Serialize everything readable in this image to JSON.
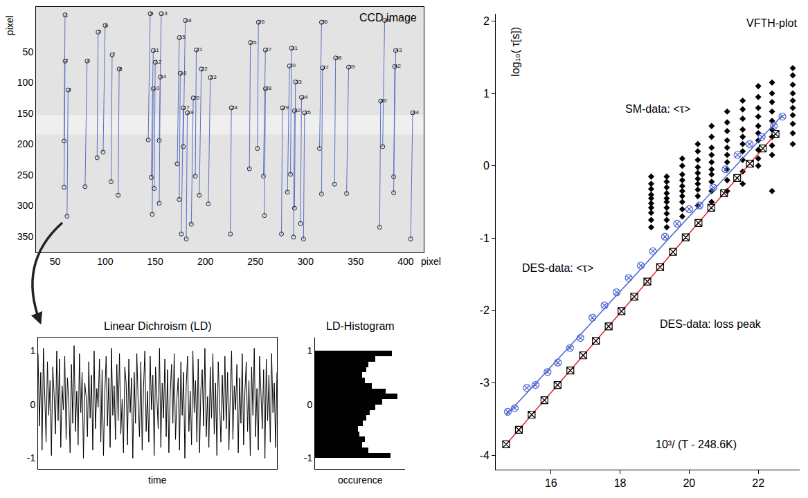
{
  "chart_data": [
    {
      "type": "scatter",
      "title": "CCD image",
      "xlabel": "pixel",
      "ylabel": "pixel",
      "xlim": [
        31,
        418
      ],
      "ylim": [
        376,
        -23
      ],
      "xticks": [
        50,
        100,
        150,
        200,
        250,
        300,
        350,
        400
      ],
      "yticks": [
        50,
        100,
        150,
        200,
        250,
        300,
        350
      ],
      "color": "#5b6fc4",
      "marker": "circle-open",
      "points": [
        {
          "label": "1",
          "x": [
            60,
            59
          ],
          "y": [
            -10,
            195
          ]
        },
        {
          "label": "2",
          "x": [
            60,
            59
          ],
          "y": [
            65,
            270
          ]
        },
        {
          "label": "3",
          "x": [
            63,
            62
          ],
          "y": [
            112,
            317
          ]
        },
        {
          "label": "4",
          "x": [
            82,
            80
          ],
          "y": [
            65,
            269
          ]
        },
        {
          "label": "5",
          "x": [
            93,
            92
          ],
          "y": [
            18,
            222
          ]
        },
        {
          "label": "6",
          "x": [
            100,
            98
          ],
          "y": [
            7,
            213
          ]
        },
        {
          "label": "7",
          "x": [
            107,
            106
          ],
          "y": [
            55,
            261
          ]
        },
        {
          "label": "8",
          "x": [
            114,
            113
          ],
          "y": [
            78,
            283
          ]
        },
        {
          "label": "9",
          "x": [
            145,
            143
          ],
          "y": [
            -12,
            193
          ]
        },
        {
          "label": "10",
          "x": [
            148,
            147
          ],
          "y": [
            110,
            314
          ]
        },
        {
          "label": "11",
          "x": [
            148,
            146
          ],
          "y": [
            48,
            254
          ]
        },
        {
          "label": "12",
          "x": [
            150,
            149
          ],
          "y": [
            67,
            272
          ]
        },
        {
          "label": "13",
          "x": [
            156,
            154
          ],
          "y": [
            -12,
            194
          ]
        },
        {
          "label": "14",
          "x": [
            155,
            154
          ],
          "y": [
            91,
            296
          ]
        },
        {
          "label": "15",
          "x": [
            174,
            172
          ],
          "y": [
            27,
            232
          ]
        },
        {
          "label": "16",
          "x": [
            175,
            174
          ],
          "y": [
            85,
            290
          ]
        },
        {
          "label": "17",
          "x": [
            178,
            176
          ],
          "y": [
            141,
            346
          ]
        },
        {
          "label": "18",
          "x": [
            180,
            178
          ],
          "y": [
            -1,
            204
          ]
        },
        {
          "label": "19",
          "x": [
            182,
            181
          ],
          "y": [
            149,
            354
          ]
        },
        {
          "label": "20",
          "x": [
            188,
            186
          ],
          "y": [
            125,
            330
          ]
        },
        {
          "label": "21",
          "x": [
            191,
            190
          ],
          "y": [
            47,
            252
          ]
        },
        {
          "label": "22",
          "x": [
            196,
            194
          ],
          "y": [
            78,
            283
          ]
        },
        {
          "label": "23",
          "x": [
            205,
            203
          ],
          "y": [
            92,
            297
          ]
        },
        {
          "label": "24",
          "x": [
            226,
            225
          ],
          "y": [
            141,
            346
          ]
        },
        {
          "label": "25",
          "x": [
            245,
            244
          ],
          "y": [
            35,
            240
          ]
        },
        {
          "label": "26",
          "x": [
            253,
            252
          ],
          "y": [
            2,
            207
          ]
        },
        {
          "label": "27",
          "x": [
            260,
            258
          ],
          "y": [
            47,
            252
          ]
        },
        {
          "label": "28",
          "x": [
            260,
            259
          ],
          "y": [
            110,
            316
          ]
        },
        {
          "label": "29",
          "x": [
            277,
            276
          ],
          "y": [
            141,
            346
          ]
        },
        {
          "label": "30",
          "x": [
            284,
            282
          ],
          "y": [
            73,
            278
          ]
        },
        {
          "label": "31",
          "x": [
            286,
            285
          ],
          "y": [
            44,
            249
          ]
        },
        {
          "label": "32",
          "x": [
            289,
            288
          ],
          "y": [
            146,
            351
          ]
        },
        {
          "label": "33",
          "x": [
            290,
            289
          ],
          "y": [
            99,
            304
          ]
        },
        {
          "label": "34",
          "x": [
            296,
            295
          ],
          "y": [
            124,
            329
          ]
        },
        {
          "label": "35",
          "x": [
            299,
            298
          ],
          "y": [
            149,
            354
          ]
        },
        {
          "label": "36",
          "x": [
            316,
            314
          ],
          "y": [
            2,
            207
          ]
        },
        {
          "label": "37",
          "x": [
            317,
            316
          ],
          "y": [
            76,
            281
          ]
        },
        {
          "label": "38",
          "x": [
            330,
            329
          ],
          "y": [
            60,
            265
          ]
        },
        {
          "label": "39",
          "x": [
            343,
            341
          ],
          "y": [
            75,
            280
          ]
        },
        {
          "label": "40",
          "x": [
            375,
            374
          ],
          "y": [
            130,
            335
          ]
        },
        {
          "label": "41",
          "x": [
            379,
            377
          ],
          "y": [
            -1,
            204
          ]
        },
        {
          "label": "42",
          "x": [
            389,
            388
          ],
          "y": [
            74,
            279
          ]
        },
        {
          "label": "43",
          "x": [
            390,
            388
          ],
          "y": [
            48,
            253
          ]
        },
        {
          "label": "44",
          "x": [
            407,
            405
          ],
          "y": [
            149,
            354
          ]
        }
      ]
    },
    {
      "type": "line",
      "title": "Linear Dichroism (LD)",
      "xlabel": "time",
      "xlim": [
        0,
        179
      ],
      "ylim": [
        -1.2,
        1.25
      ],
      "yticks": [
        -1,
        0,
        1
      ],
      "tick_labels": "y",
      "color": "#000000",
      "values": [
        0.95,
        -0.4,
        0.6,
        -0.85,
        1.05,
        0.1,
        -0.7,
        0.8,
        -0.2,
        0.45,
        -0.95,
        0.7,
        0.2,
        -0.55,
        1.0,
        -0.3,
        0.85,
        -0.8,
        0.35,
        -0.1,
        0.9,
        -0.65,
        0.5,
        0.05,
        -0.9,
        0.75,
        -0.35,
        1.1,
        -0.5,
        0.25,
        -0.75,
        0.95,
        -0.15,
        0.6,
        -1.0,
        0.4,
        0.15,
        -0.6,
        0.8,
        -0.25,
        0.55,
        -0.85,
        1.0,
        -0.45,
        0.3,
        -0.05,
        0.85,
        -0.7,
        0.65,
        -0.95,
        0.2,
        0.9,
        -0.4,
        0.5,
        -0.8,
        1.05,
        -0.2,
        0.35,
        -0.65,
        0.75,
        -0.3,
        0.95,
        -0.55,
        0.1,
        -0.9,
        0.7,
        0.4,
        -0.75,
        0.85,
        -0.15,
        0.5,
        -1.0,
        0.6,
        -0.35,
        0.95,
        0.05,
        -0.6,
        0.8,
        -0.85,
        0.3,
        1.0,
        -0.5,
        0.25,
        -0.7,
        0.9,
        -0.1,
        0.55,
        -0.95,
        0.7,
        0.15,
        -0.45,
        1.05,
        -0.8,
        0.4,
        -0.25,
        0.85,
        -0.6,
        0.65,
        -0.9,
        0.2,
        0.75,
        -0.35,
        0.95,
        -0.65,
        0.1,
        0.5,
        -0.85,
        0.8,
        -0.2,
        0.6,
        -1.0,
        0.35,
        0.9,
        -0.5,
        0.25,
        -0.75,
        1.0,
        -0.15,
        0.45,
        -0.7,
        0.85,
        -0.9,
        0.3,
        0.65,
        -0.4,
        1.05,
        -0.6,
        0.15,
        -0.8,
        0.7,
        -0.25,
        0.95,
        -0.55,
        0.4,
        -0.95,
        0.8,
        0.05,
        -0.7,
        0.55,
        -0.3,
        0.9,
        -0.45,
        0.6,
        -0.85,
        0.2,
        1.0,
        -0.65,
        0.35,
        -0.1,
        0.75,
        -0.9,
        0.5,
        -0.35,
        0.95,
        -0.75,
        0.25,
        0.8,
        -0.5,
        0.45,
        -0.95,
        0.7,
        -0.2,
        1.05,
        -0.6,
        0.3,
        -0.85,
        0.9,
        0.1,
        -0.45,
        0.65,
        -1.0,
        0.85,
        -0.3,
        0.55,
        -0.7,
        0.95,
        -0.15,
        0.4,
        -0.8,
        0.6
      ]
    },
    {
      "type": "histogram",
      "orientation": "horizontal",
      "title": "LD-Histogram",
      "xlabel": "occurence",
      "xlim": [
        0,
        105
      ],
      "ylim": [
        -1.2,
        1.25
      ],
      "yticks": [
        -1,
        0,
        1
      ],
      "tick_labels": "y",
      "color": "#000000",
      "bins": [
        -1.0,
        -0.9,
        -0.8,
        -0.7,
        -0.6,
        -0.5,
        -0.4,
        -0.3,
        -0.2,
        -0.1,
        0.0,
        0.1,
        0.2,
        0.3,
        0.4,
        0.5,
        0.6,
        0.7,
        0.8,
        0.9,
        1.0
      ],
      "counts": [
        88,
        62,
        55,
        58,
        52,
        50,
        56,
        60,
        64,
        70,
        78,
        96,
        82,
        66,
        58,
        55,
        60,
        62,
        70,
        90
      ]
    },
    {
      "type": "scatter",
      "title": "VFTH-plot",
      "xlabel": "10³/ (T - 248.6K)",
      "ylabel": "log₁₀( τ[s])",
      "xlim": [
        14.4,
        23.2
      ],
      "ylim": [
        -4.2,
        2.1
      ],
      "xticks": [
        16,
        18,
        20,
        22
      ],
      "yticks": [
        -4,
        -3,
        -2,
        -1,
        0,
        1,
        2
      ],
      "annotations": [
        "SM-data: <τ>",
        "DES-data: <τ>",
        "DES-data: loss peak"
      ],
      "series": [
        {
          "type": "scatter",
          "color": "#000000",
          "marker": "diamond",
          "x": [
            18.9,
            18.9,
            18.9,
            18.9,
            18.9,
            18.9,
            18.9,
            18.9,
            18.9,
            18.9,
            19.35,
            19.35,
            19.35,
            19.35,
            19.35,
            19.35,
            19.35,
            19.35,
            19.35,
            19.35,
            19.8,
            19.8,
            19.8,
            19.8,
            19.8,
            19.8,
            19.8,
            19.8,
            19.8,
            19.8,
            20.25,
            20.25,
            20.25,
            20.25,
            20.25,
            20.25,
            20.25,
            20.25,
            20.25,
            20.25,
            20.65,
            20.65,
            20.65,
            20.65,
            20.65,
            20.65,
            20.65,
            20.65,
            20.65,
            20.65,
            21.1,
            21.1,
            21.1,
            21.1,
            21.1,
            21.1,
            21.1,
            21.1,
            21.1,
            21.1,
            21.55,
            21.55,
            21.55,
            21.55,
            21.55,
            21.55,
            21.55,
            21.55,
            21.55,
            21.55,
            22.0,
            22.0,
            22.0,
            22.0,
            22.0,
            22.0,
            22.0,
            22.0,
            22.0,
            22.0,
            22.4,
            22.4,
            22.4,
            22.4,
            22.4,
            22.4,
            22.4,
            22.4,
            22.4,
            22.4,
            23.0,
            23.0,
            23.0,
            23.0,
            23.0,
            23.0,
            23.0,
            23.0,
            23.0,
            23.0
          ],
          "values": [
            -0.15,
            -0.25,
            -0.32,
            -0.4,
            -0.45,
            -0.52,
            -0.58,
            -0.65,
            -0.75,
            -0.85,
            -0.15,
            -0.22,
            -0.3,
            -0.38,
            -0.45,
            -0.5,
            -0.58,
            -0.66,
            -0.75,
            -0.85,
            0.1,
            0.0,
            -0.12,
            -0.2,
            -0.28,
            -0.35,
            -0.42,
            -0.5,
            -0.6,
            -0.7,
            0.3,
            0.2,
            0.08,
            -0.02,
            -0.1,
            -0.18,
            -0.25,
            -0.33,
            -0.42,
            -0.55,
            0.55,
            0.4,
            0.25,
            0.15,
            0.05,
            -0.05,
            -0.12,
            -0.22,
            -0.35,
            -0.5,
            0.75,
            0.6,
            0.48,
            0.35,
            0.25,
            0.15,
            0.05,
            -0.05,
            -0.2,
            -0.35,
            0.9,
            0.78,
            0.65,
            0.5,
            0.4,
            0.3,
            0.2,
            0.08,
            -0.08,
            -0.25,
            1.1,
            0.95,
            0.8,
            0.68,
            0.55,
            0.45,
            0.35,
            0.22,
            0.1,
            0.0,
            1.15,
            1.0,
            0.88,
            0.75,
            0.62,
            0.5,
            0.4,
            0.28,
            0.15,
            -0.35,
            1.35,
            1.25,
            1.12,
            1.0,
            0.9,
            0.8,
            0.7,
            0.58,
            0.45,
            0.3
          ]
        },
        {
          "type": "line",
          "color": "#4a63d0",
          "line_style": "solid",
          "x": [
            14.7,
            22.7
          ],
          "values": [
            -3.45,
            0.7
          ]
        },
        {
          "type": "scatter",
          "color": "#4a63d0",
          "marker": "circle-x-open",
          "x": [
            14.75,
            14.95,
            15.3,
            15.55,
            15.9,
            16.2,
            16.55,
            16.85,
            17.2,
            17.55,
            17.9,
            18.25,
            18.6,
            18.95,
            19.3,
            19.65,
            20.0,
            20.3,
            20.7,
            21.05,
            21.4,
            21.75,
            22.1,
            22.45,
            22.7
          ],
          "values": [
            -3.4,
            -3.35,
            -3.07,
            -3.03,
            -2.85,
            -2.72,
            -2.52,
            -2.38,
            -2.1,
            -1.93,
            -1.75,
            -1.55,
            -1.38,
            -1.18,
            -0.98,
            -0.8,
            -0.6,
            -0.55,
            -0.3,
            -0.05,
            0.15,
            0.3,
            0.4,
            0.55,
            0.68
          ]
        },
        {
          "type": "line",
          "color": "#e0202a",
          "line_style": "solid",
          "x": [
            14.7,
            22.5
          ],
          "values": [
            -3.85,
            0.44
          ]
        },
        {
          "type": "scatter",
          "color": "#000000",
          "marker": "square-x-open",
          "x": [
            14.7,
            15.07,
            15.44,
            15.81,
            16.19,
            16.56,
            16.93,
            17.3,
            17.67,
            18.04,
            18.41,
            18.79,
            19.16,
            19.53,
            19.9,
            20.27,
            20.64,
            21.01,
            21.39,
            21.76,
            22.13,
            22.5
          ],
          "values": [
            -3.85,
            -3.65,
            -3.44,
            -3.24,
            -3.03,
            -2.83,
            -2.62,
            -2.42,
            -2.22,
            -2.01,
            -1.81,
            -1.6,
            -1.4,
            -1.19,
            -0.99,
            -0.79,
            -0.58,
            -0.38,
            -0.17,
            0.03,
            0.24,
            0.44
          ]
        }
      ]
    }
  ]
}
